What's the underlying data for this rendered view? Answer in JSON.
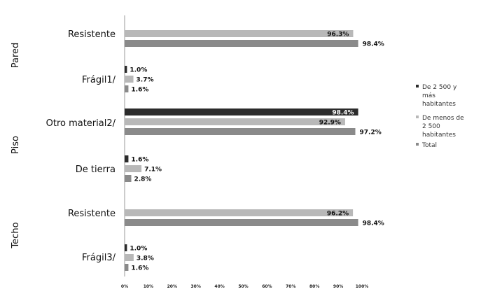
{
  "chart_data": {
    "type": "bar",
    "orientation": "horizontal",
    "title": "",
    "xlabel": "",
    "ylabel": "",
    "xlim": [
      0,
      100
    ],
    "x_ticks": [
      "0%",
      "10%",
      "20%",
      "30%",
      "40%",
      "50%",
      "60%",
      "70%",
      "80%",
      "90%",
      "100%"
    ],
    "grid": false,
    "legend_position": "right",
    "groups": [
      {
        "name": "Pared",
        "categories": [
          "Resistente",
          "Frágil1/"
        ]
      },
      {
        "name": "Piso",
        "categories": [
          "Otro material2/",
          "De tierra"
        ]
      },
      {
        "name": "Techo",
        "categories": [
          "Resistente",
          "Frágil3/"
        ]
      }
    ],
    "series": [
      {
        "name": "De 2 500 y más habitantes",
        "color": "#2b2b2b",
        "values": [
          null,
          1.0,
          98.4,
          1.6,
          null,
          1.0
        ],
        "labels": [
          "",
          "1.0%",
          "98.4%",
          "1.6%",
          "",
          "1.0%"
        ]
      },
      {
        "name": "De menos de 2 500 habitantes",
        "color": "#b8b8b8",
        "values": [
          96.3,
          3.7,
          92.9,
          7.1,
          96.2,
          3.8
        ],
        "labels": [
          "96.3%",
          "3.7%",
          "92.9%",
          "7.1%",
          "96.2%",
          "3.8%"
        ]
      },
      {
        "name": "Total",
        "color": "#8a8a8a",
        "values": [
          98.4,
          1.6,
          97.2,
          2.8,
          98.4,
          1.6
        ],
        "labels": [
          "98.4%",
          "1.6%",
          "97.2%",
          "2.8%",
          "98.4%",
          "1.6%"
        ]
      }
    ]
  },
  "legend": {
    "items": [
      {
        "lines": [
          "De 2 500 y",
          "más",
          "habitantes"
        ]
      },
      {
        "lines": [
          "De menos de",
          "2 500",
          "habitantes"
        ]
      },
      {
        "lines": [
          "Total"
        ]
      }
    ]
  }
}
